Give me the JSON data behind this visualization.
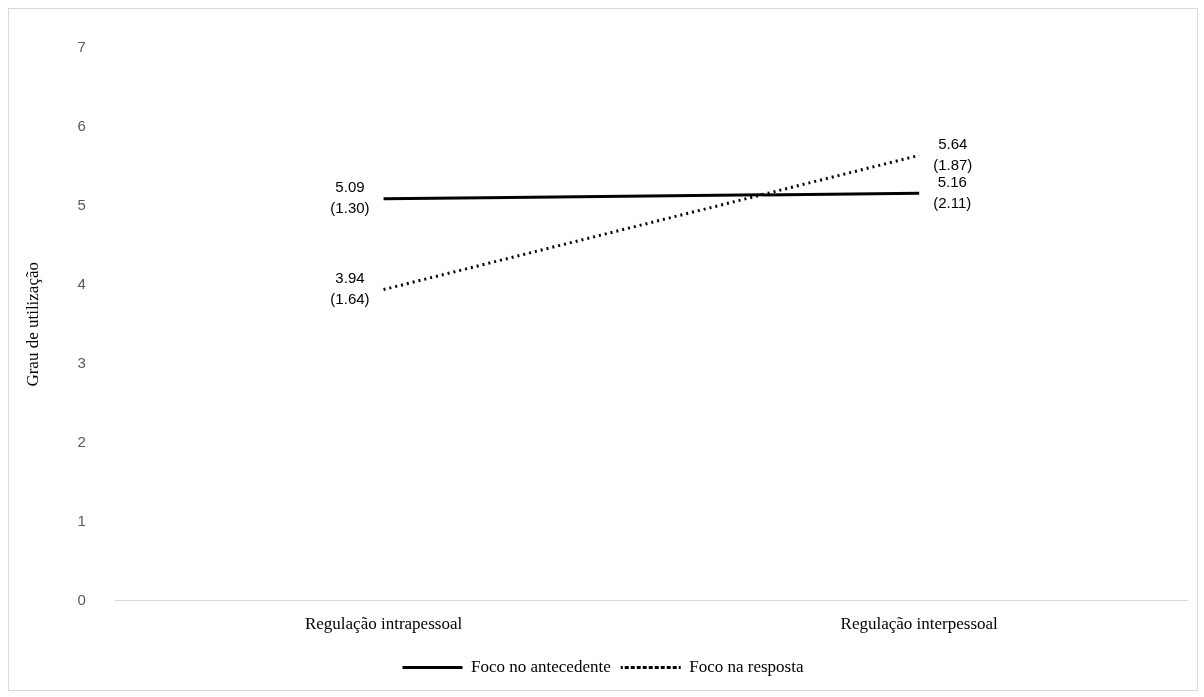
{
  "chart_data": {
    "type": "line",
    "ylabel": "Grau de utilização",
    "categories": [
      "Regulação intrapessoal",
      "Regulação interpessoal"
    ],
    "ylim": [
      0,
      7
    ],
    "yticks": [
      0,
      1,
      2,
      3,
      4,
      5,
      6,
      7
    ],
    "grid": false,
    "legend": "bottom",
    "marker": "none",
    "series": [
      {
        "name": "Foco no antecedente",
        "color": "#000000",
        "line_style": "solid",
        "values": [
          5.09,
          5.16
        ],
        "value_labels": [
          "5.09\n(1.30)",
          "5.16\n(2.11)"
        ]
      },
      {
        "name": "Foco na resposta",
        "color": "#000000",
        "line_style": "dotted",
        "values": [
          3.94,
          5.64
        ],
        "value_labels": [
          "3.94\n(1.64)",
          "5.64\n(1.87)"
        ]
      }
    ]
  }
}
